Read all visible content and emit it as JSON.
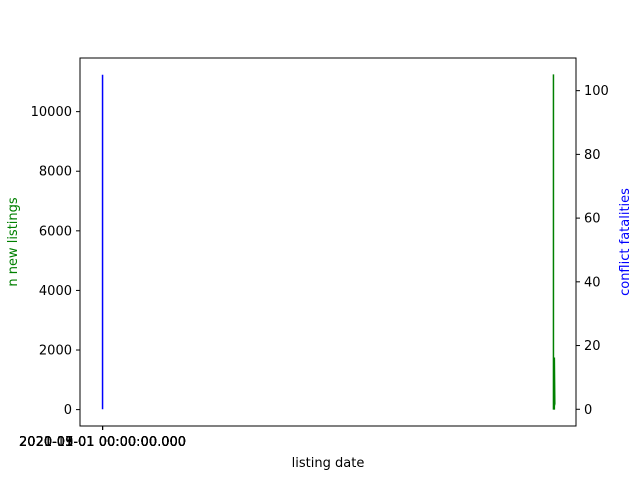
{
  "chart_data": {
    "type": "line",
    "xlabel": "listing date",
    "ylabel_left": "n new listings",
    "ylabel_right": "conflict fatalities",
    "left_axis_color": "#008000",
    "right_axis_color": "#0000ff",
    "x_tick_labels": [
      "2020-01-01 00:00:00.000",
      "2020-03-01 00:00:00.000",
      "2020-05-01 00:00:00.000",
      "2020-07-01 00:00:00.000",
      "2020-09-01 00:00:00.000",
      "2020-11-01 00:00:00.000",
      "2021-01-01 00:00:00.000",
      "2021-03-01 00:00:00.000"
    ],
    "ylim_left": [
      -550,
      11800
    ],
    "yticks_left": [
      0,
      2000,
      4000,
      6000,
      8000,
      10000
    ],
    "ylim_right": [
      -5.25,
      110.25
    ],
    "yticks_right": [
      0,
      20,
      40,
      60,
      80,
      100
    ],
    "xlim": [
      -0.05,
      1.05
    ],
    "series": [
      {
        "name": "n new listings",
        "axis": "left",
        "color": "#008000",
        "points": [
          [
            1.0,
            0
          ],
          [
            1.0,
            11250
          ],
          [
            1.0,
            150
          ],
          [
            1.002,
            0
          ],
          [
            1.002,
            1750
          ],
          [
            1.003,
            200
          ],
          [
            1.001,
            50
          ]
        ]
      },
      {
        "name": "conflict fatalities",
        "axis": "right",
        "color": "#0000ff",
        "points": [
          [
            0.0,
            0
          ],
          [
            0.0,
            105
          ],
          [
            0.0,
            0
          ]
        ]
      }
    ]
  }
}
